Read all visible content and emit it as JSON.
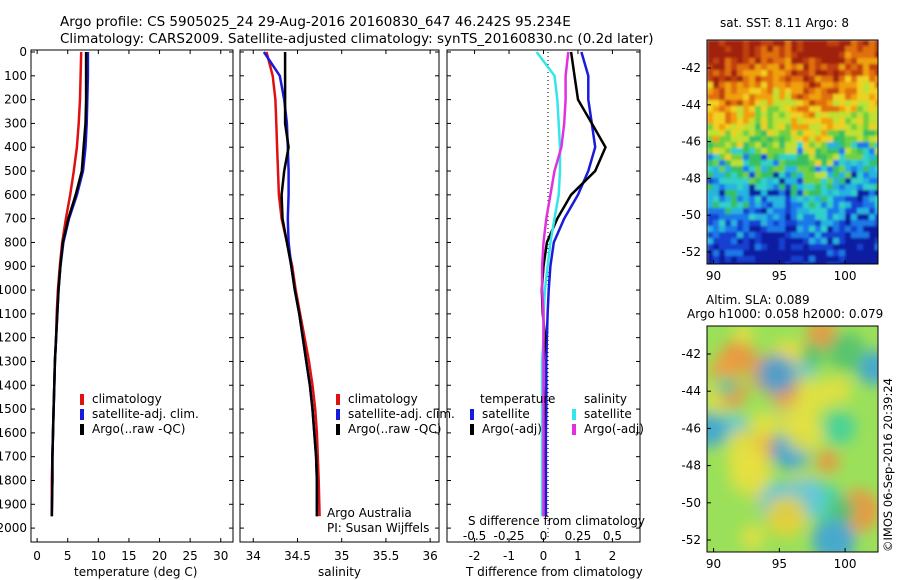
{
  "header": {
    "line1": "Argo profile: CS 5905025_24 29-Aug-2016 20160830_647 46.242S 95.234E",
    "line2": "Climatology: CARS2009. Satellite-adjusted climatology: synTS_20160830.nc (0.2d later)"
  },
  "colors": {
    "climatology": "#e01010",
    "satellite": "#1a1adc",
    "argo": "#000000",
    "cyan": "#33e6ea",
    "magenta": "#e030e0"
  },
  "depth_ticks": [
    "0",
    "100",
    "200",
    "300",
    "400",
    "500",
    "600",
    "700",
    "800",
    "900",
    "1000",
    "1100",
    "1200",
    "1300",
    "1400",
    "1500",
    "1600",
    "1700",
    "1800",
    "1900",
    "2000"
  ],
  "temperature_panel": {
    "xlabel": "temperature (deg C)",
    "xticks": [
      "0",
      "5",
      "10",
      "15",
      "20",
      "25",
      "30"
    ],
    "legend": [
      "climatology",
      "satellite-adj. clim.",
      "Argo(..raw -QC)"
    ]
  },
  "salinity_panel": {
    "xlabel": "salinity",
    "xticks": [
      "34",
      "34.5",
      "35",
      "35.5",
      "36"
    ],
    "legend": [
      "climatology",
      "satellite-adj. clim.",
      "Argo(..raw -QC)"
    ],
    "note1": "Argo Australia",
    "note2": "PI: Susan Wijffels"
  },
  "difference_panel": {
    "xlabel": "T difference from climatology",
    "s_label": "S difference from climatology",
    "t_ticks": [
      "-2",
      "-1",
      "0",
      "1",
      "2"
    ],
    "s_ticks": [
      "-0.5",
      "-0.25",
      "0",
      "0.25",
      "0.5"
    ],
    "legend_temp_title": "temperature",
    "legend_sal_title": "salinity",
    "legend_temp": [
      "satellite",
      "Argo(-adj)"
    ],
    "legend_sal": [
      "satellite",
      "Argo(-adj)"
    ]
  },
  "map_sst": {
    "title": "sat. SST: 8.11 Argo: 8",
    "yticks": [
      "-42",
      "-44",
      "-46",
      "-48",
      "-50",
      "-52"
    ],
    "xticks": [
      "90",
      "95",
      "100"
    ]
  },
  "map_sla": {
    "title1": "Altim. SLA: 0.089",
    "title2": "Argo h1000: 0.058 h2000: 0.079",
    "yticks": [
      "-42",
      "-44",
      "-46",
      "-48",
      "-50",
      "-52"
    ],
    "xticks": [
      "90",
      "95",
      "100"
    ]
  },
  "credit": "©IMOS 06-Sep-2016 20:39:24",
  "chart_data": [
    {
      "type": "line",
      "xlabel": "temperature (deg C)",
      "ylabel": "",
      "xlim": [
        -1,
        32
      ],
      "ylim": [
        2050,
        0
      ],
      "series": [
        {
          "name": "climatology",
          "color": "#e01010",
          "x": [
            7.2,
            7.1,
            7.0,
            6.8,
            6.5,
            6.0,
            5.4,
            4.7,
            4.1,
            3.7,
            3.4,
            3.2,
            3.1,
            2.9,
            2.8,
            2.7,
            2.6,
            2.5,
            2.4,
            2.4
          ],
          "y": [
            0,
            100,
            200,
            300,
            400,
            500,
            600,
            700,
            800,
            900,
            1000,
            1100,
            1200,
            1300,
            1400,
            1500,
            1600,
            1700,
            1800,
            1950
          ]
        },
        {
          "name": "satellite-adj. clim.",
          "color": "#1a1adc",
          "x": [
            8.3,
            8.3,
            8.2,
            8.1,
            7.9,
            7.5,
            6.5,
            5.2,
            4.3,
            3.8,
            3.5,
            3.3,
            3.1,
            2.9,
            2.8,
            2.7,
            2.6,
            2.5,
            2.5,
            2.4
          ],
          "y": [
            0,
            100,
            200,
            300,
            400,
            500,
            600,
            700,
            800,
            900,
            1000,
            1100,
            1200,
            1300,
            1400,
            1500,
            1600,
            1700,
            1800,
            1950
          ]
        },
        {
          "name": "Argo(..raw -QC)",
          "color": "#000000",
          "x": [
            8.0,
            8.0,
            8.0,
            7.9,
            7.6,
            7.3,
            6.3,
            5.1,
            4.2,
            3.8,
            3.5,
            3.3,
            3.1,
            2.9,
            2.8,
            2.7,
            2.6,
            2.5,
            2.5,
            2.4
          ],
          "y": [
            0,
            100,
            200,
            300,
            400,
            500,
            600,
            700,
            800,
            900,
            1000,
            1100,
            1200,
            1300,
            1400,
            1500,
            1600,
            1700,
            1800,
            1950
          ]
        }
      ]
    },
    {
      "type": "line",
      "xlabel": "salinity",
      "ylabel": "",
      "xlim": [
        33.85,
        36.1
      ],
      "ylim": [
        2050,
        0
      ],
      "series": [
        {
          "name": "climatology",
          "color": "#e01010",
          "x": [
            34.15,
            34.22,
            34.25,
            34.26,
            34.27,
            34.28,
            34.29,
            34.32,
            34.38,
            34.44,
            34.48,
            34.53,
            34.58,
            34.63,
            34.67,
            34.7,
            34.72,
            34.73,
            34.74,
            34.75
          ],
          "y": [
            0,
            100,
            200,
            300,
            400,
            500,
            600,
            700,
            800,
            900,
            1000,
            1100,
            1200,
            1300,
            1400,
            1500,
            1600,
            1700,
            1800,
            1950
          ]
        },
        {
          "name": "satellite-adj. clim.",
          "color": "#1a1adc",
          "x": [
            34.12,
            34.3,
            34.35,
            34.38,
            34.39,
            34.4,
            34.4,
            34.39,
            34.4,
            34.43,
            34.47,
            34.52,
            34.56,
            34.6,
            34.64,
            34.67,
            34.69,
            34.71,
            34.72,
            34.72
          ],
          "y": [
            0,
            100,
            200,
            300,
            400,
            500,
            600,
            700,
            800,
            900,
            1000,
            1100,
            1200,
            1300,
            1400,
            1500,
            1600,
            1700,
            1800,
            1950
          ]
        },
        {
          "name": "Argo(..raw -QC)",
          "color": "#000000",
          "x": [
            34.36,
            34.36,
            34.36,
            34.36,
            34.4,
            34.35,
            34.32,
            34.33,
            34.38,
            34.43,
            34.47,
            34.52,
            34.56,
            34.6,
            34.64,
            34.67,
            34.69,
            34.71,
            34.72,
            34.72
          ],
          "y": [
            0,
            100,
            200,
            300,
            400,
            500,
            600,
            700,
            800,
            900,
            1000,
            1100,
            1200,
            1300,
            1400,
            1500,
            1600,
            1700,
            1800,
            1950
          ]
        }
      ]
    },
    {
      "type": "line",
      "xlabel": "T difference from climatology",
      "ylabel": "",
      "xlim": [
        -2.8,
        2.8
      ],
      "ylim": [
        2050,
        0
      ],
      "series": [
        {
          "name": "temperature satellite",
          "color": "#1a1adc",
          "x": [
            1.1,
            1.3,
            1.3,
            1.4,
            1.5,
            1.3,
            1.0,
            0.6,
            0.3,
            0.2,
            0.15,
            0.12,
            0.1,
            0.08,
            0.08,
            0.08,
            0.07,
            0.07,
            0.07,
            0.07
          ],
          "y": [
            0,
            100,
            200,
            300,
            400,
            500,
            600,
            700,
            800,
            900,
            1000,
            1100,
            1200,
            1300,
            1400,
            1500,
            1600,
            1700,
            1800,
            1950
          ]
        },
        {
          "name": "temperature Argo(-adj)",
          "color": "#000000",
          "x": [
            0.8,
            0.9,
            1.0,
            1.4,
            1.8,
            1.5,
            0.8,
            0.4,
            0.1,
            0.0,
            -0.05,
            -0.02,
            0.05,
            0.0,
            0.0,
            0.02,
            0.0,
            0.01,
            0.0,
            0.0
          ],
          "y": [
            0,
            100,
            200,
            300,
            400,
            500,
            600,
            700,
            800,
            900,
            1000,
            1100,
            1200,
            1300,
            1400,
            1500,
            1600,
            1700,
            1800,
            1950
          ]
        },
        {
          "name": "salinity satellite",
          "color": "#33e6ea",
          "x": [
            -0.05,
            0.08,
            0.1,
            0.11,
            0.12,
            0.12,
            0.11,
            0.08,
            0.05,
            0.03,
            0.01,
            0.0,
            0.0,
            -0.01,
            -0.01,
            -0.01,
            -0.01,
            -0.01,
            -0.01,
            -0.01
          ],
          "y": [
            0,
            100,
            200,
            300,
            400,
            500,
            600,
            700,
            800,
            900,
            1000,
            1100,
            1200,
            1300,
            1400,
            1500,
            1600,
            1700,
            1800,
            1950
          ]
        },
        {
          "name": "salinity Argo(-adj)",
          "color": "#e030e0",
          "x": [
            0.18,
            0.16,
            0.16,
            0.15,
            0.13,
            0.08,
            0.05,
            0.02,
            0.0,
            -0.01,
            -0.01,
            0.0,
            0.0,
            0.0,
            0.0,
            0.0,
            0.0,
            0.0,
            0.0,
            0.0
          ],
          "y": [
            0,
            100,
            200,
            300,
            400,
            500,
            600,
            700,
            800,
            900,
            1000,
            1100,
            1200,
            1300,
            1400,
            1500,
            1600,
            1700,
            1800,
            1950
          ]
        }
      ]
    },
    {
      "type": "heatmap",
      "title": "sat. SST: 8.11 Argo: 8",
      "xlim": [
        89.5,
        102.5
      ],
      "ylim": [
        -52.3,
        -40.8
      ]
    },
    {
      "type": "heatmap",
      "title": "Altim. SLA: 0.089",
      "xlim": [
        89.5,
        102.5
      ],
      "ylim": [
        -52.3,
        -40.8
      ]
    }
  ]
}
